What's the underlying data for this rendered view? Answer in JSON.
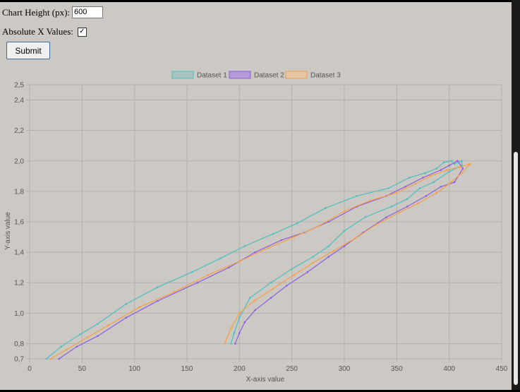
{
  "form": {
    "height_label": "Chart Height (px):",
    "height_value": "600",
    "absx_label": "Absolute X Values:",
    "absx_checked": "✓",
    "submit_label": "Submit"
  },
  "chart_data": {
    "type": "line",
    "xlabel": "X-axis value",
    "ylabel": "Y-axis value",
    "xlim": [
      0,
      450
    ],
    "ylim": [
      0.7,
      2.5
    ],
    "xticks": [
      0,
      50,
      100,
      150,
      200,
      250,
      300,
      350,
      400,
      450
    ],
    "xtick_labels": [
      "0",
      "50",
      "100",
      "150",
      "200",
      "250",
      "300",
      "350",
      "400",
      "450"
    ],
    "yticks": [
      0.7,
      0.8,
      1.0,
      1.2,
      1.4,
      1.6,
      1.8,
      2.0,
      2.2,
      2.4,
      2.5
    ],
    "ytick_labels": [
      "0,7",
      "0,8",
      "1,0",
      "1,2",
      "1,4",
      "1,6",
      "1,8",
      "2,0",
      "2,2",
      "2,4",
      "2,5"
    ],
    "grid": true,
    "legend_position": "top-center",
    "series": [
      {
        "name": "Dataset 1",
        "color": "#4cbfc0",
        "fill": "#a9c4c1",
        "x": [
          16,
          30,
          48,
          65,
          92,
          122,
          155,
          182,
          205,
          232,
          255,
          282,
          312,
          342,
          362,
          377,
          388,
          395,
          402,
          405,
          412,
          412,
          400,
          385,
          372,
          360,
          345,
          320,
          300,
          285,
          270,
          250,
          230,
          210,
          200,
          195,
          192
        ],
        "y": [
          0.7,
          0.78,
          0.86,
          0.93,
          1.06,
          1.17,
          1.27,
          1.36,
          1.44,
          1.52,
          1.59,
          1.69,
          1.77,
          1.82,
          1.89,
          1.92,
          1.95,
          1.99,
          2.0,
          1.98,
          2.0,
          1.97,
          1.93,
          1.86,
          1.82,
          1.75,
          1.7,
          1.63,
          1.54,
          1.44,
          1.37,
          1.29,
          1.2,
          1.1,
          0.97,
          0.87,
          0.8
        ]
      },
      {
        "name": "Dataset 2",
        "color": "#8c5ee0",
        "fill": "#b49ad6",
        "x": [
          28,
          45,
          65,
          92,
          122,
          160,
          190,
          215,
          240,
          262,
          285,
          312,
          340,
          358,
          375,
          392,
          400,
          408,
          413,
          405,
          392,
          378,
          360,
          340,
          318,
          300,
          285,
          265,
          245,
          230,
          215,
          205,
          200,
          196
        ],
        "y": [
          0.7,
          0.78,
          0.85,
          0.97,
          1.08,
          1.2,
          1.3,
          1.4,
          1.48,
          1.53,
          1.6,
          1.7,
          1.77,
          1.83,
          1.89,
          1.94,
          1.97,
          2.0,
          1.95,
          1.86,
          1.83,
          1.77,
          1.7,
          1.63,
          1.53,
          1.44,
          1.37,
          1.27,
          1.18,
          1.1,
          1.02,
          0.94,
          0.87,
          0.8
        ]
      },
      {
        "name": "Dataset 3",
        "color": "#f5a043",
        "fill": "#e4c5a4",
        "x": [
          20,
          35,
          55,
          75,
          105,
          138,
          170,
          200,
          228,
          252,
          275,
          300,
          325,
          350,
          368,
          382,
          398,
          410,
          420,
          412,
          400,
          388,
          370,
          352,
          330,
          310,
          290,
          270,
          252,
          232,
          214,
          200,
          192,
          186
        ],
        "y": [
          0.7,
          0.76,
          0.84,
          0.92,
          1.04,
          1.14,
          1.25,
          1.34,
          1.43,
          1.5,
          1.57,
          1.67,
          1.74,
          1.79,
          1.85,
          1.9,
          1.94,
          1.96,
          1.98,
          1.92,
          1.85,
          1.79,
          1.72,
          1.66,
          1.58,
          1.49,
          1.41,
          1.33,
          1.25,
          1.16,
          1.08,
          1.0,
          0.9,
          0.8
        ]
      }
    ]
  }
}
